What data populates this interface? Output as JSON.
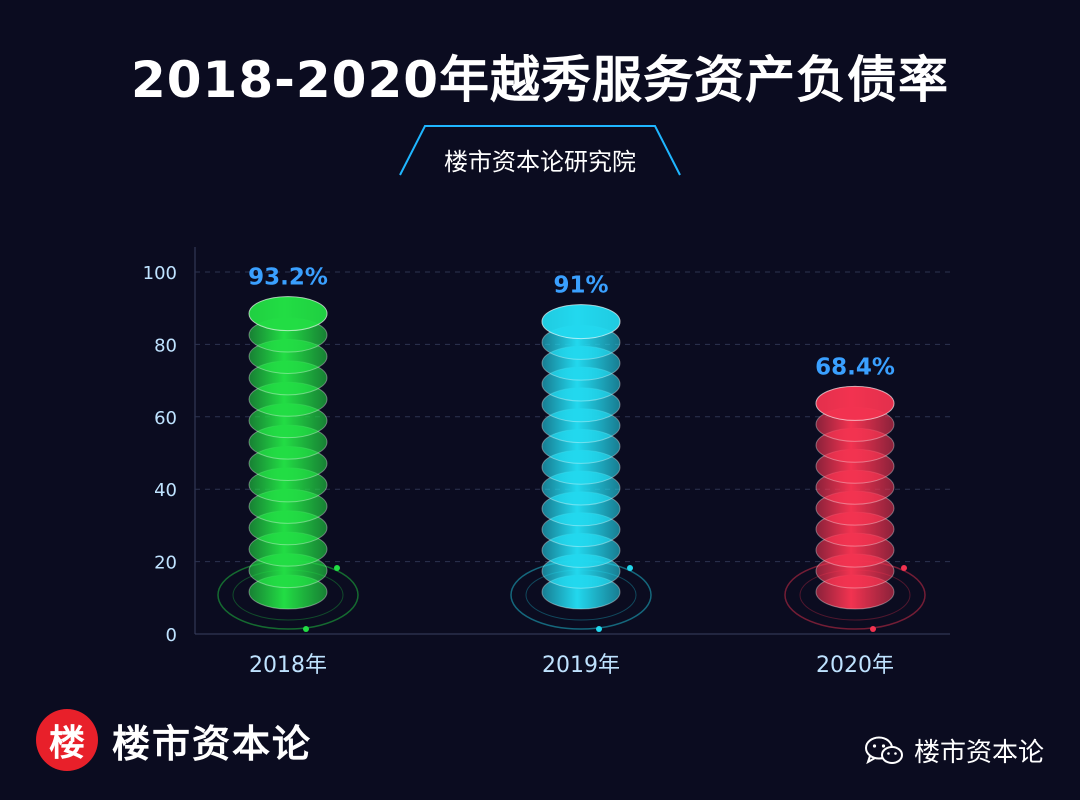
{
  "title": "2018-2020年越秀服务资产负债率",
  "subtitle": "楼市资本论研究院",
  "brand": {
    "badge": "楼",
    "name": "楼市资本论"
  },
  "wechat": {
    "icon": "wechat-icon",
    "name": "楼市资本论"
  },
  "chart_data": {
    "type": "bar",
    "title": "2018-2020年越秀服务资产负债率",
    "categories": [
      "2018年",
      "2019年",
      "2020年"
    ],
    "values": [
      93.2,
      91,
      68.4
    ],
    "data_labels": [
      "93.2%",
      "91%",
      "68.4%"
    ],
    "ylim": [
      0,
      100
    ],
    "yticks": [
      0,
      20,
      40,
      60,
      80,
      100
    ],
    "grid": true,
    "colors": [
      "#22dd44",
      "#22d8ee",
      "#f23350"
    ],
    "label_color": "#3aa0ff",
    "axis_text_color": "#bfe3ff"
  }
}
